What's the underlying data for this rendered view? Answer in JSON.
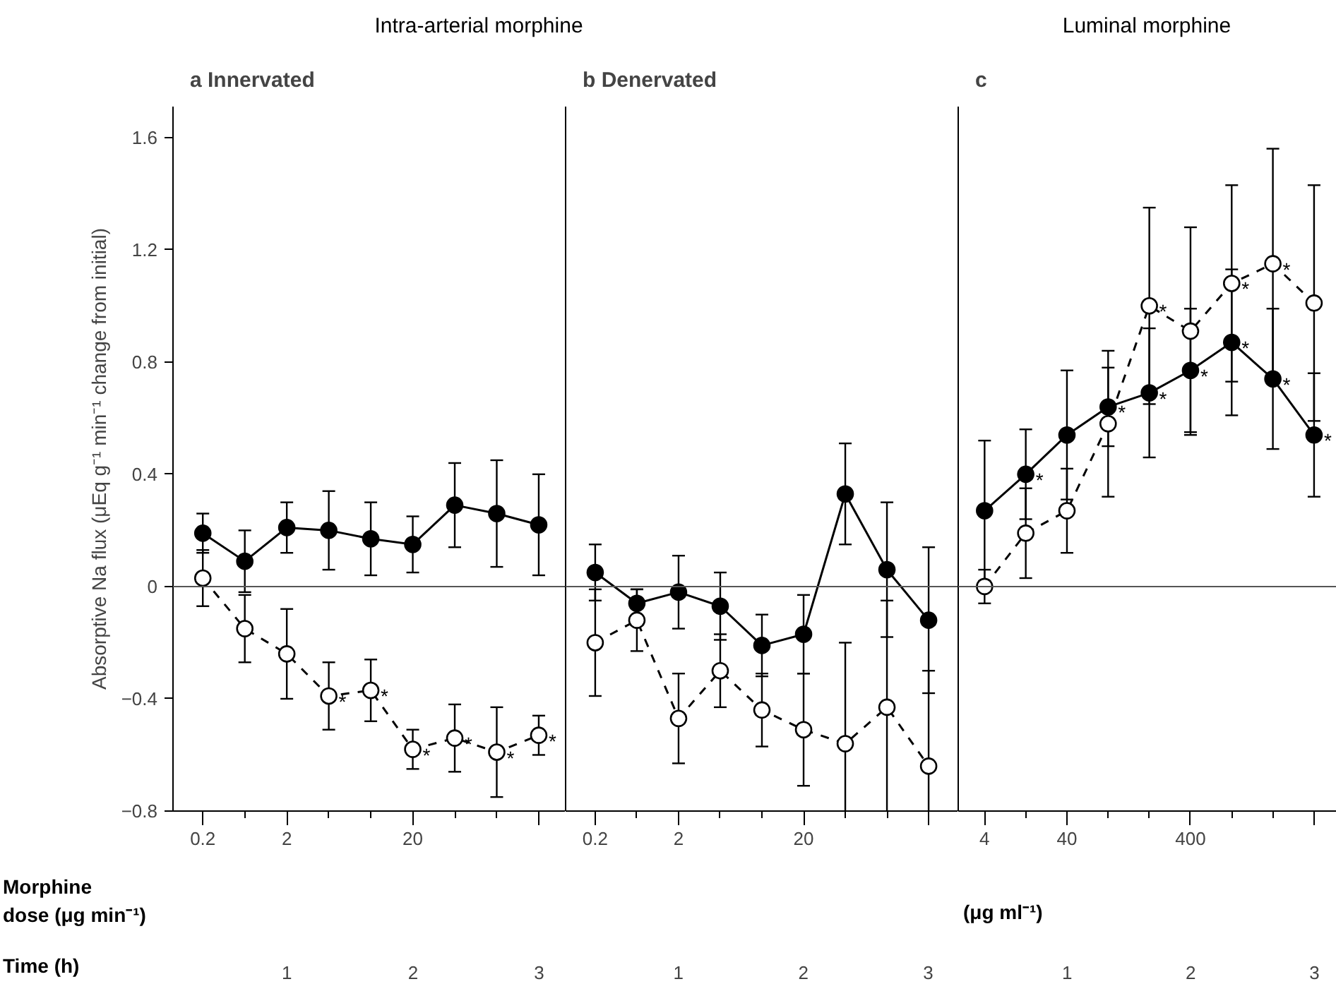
{
  "chart_data": [
    {
      "type": "line",
      "subtitle": "Intra-arterial morphine",
      "title": "a  Innervated",
      "ylabel": "Absorptive Na flux (μEq g⁻¹ min⁻¹ change from initial)",
      "xlabel": "Morphine\ndose (μg min⁻¹)",
      "x2label": "Time (h)",
      "marker": "circle",
      "categories": [
        "0.2",
        null,
        "2",
        null,
        null,
        "20",
        null,
        null,
        null
      ],
      "x2lim": [
        0.097,
        3.21
      ],
      "x2ticks": [
        1,
        2,
        3
      ],
      "ylim": [
        -0.8,
        1.71
      ],
      "yticks": [
        -0.8,
        -0.4,
        0,
        0.4,
        0.8,
        1.2,
        1.6
      ],
      "ref_lines": [
        {
          "axis": "y",
          "value": 0,
          "color": "#555555"
        }
      ],
      "series": [
        {
          "color": "#000000",
          "line_style": "solid",
          "values": [
            0.19,
            0.09,
            0.21,
            0.2,
            0.17,
            0.15,
            0.29,
            0.26,
            0.22
          ],
          "errors": [
            0.07,
            0.11,
            0.09,
            0.14,
            0.13,
            0.1,
            0.15,
            0.19,
            0.18
          ],
          "value_labels": [
            null,
            null,
            null,
            null,
            null,
            null,
            null,
            null,
            null
          ]
        },
        {
          "color": "#000000",
          "line_style": "dashed",
          "values": [
            0.03,
            -0.15,
            -0.24,
            -0.39,
            -0.37,
            -0.58,
            -0.54,
            -0.59,
            -0.53
          ],
          "errors": [
            0.1,
            0.12,
            0.16,
            0.12,
            0.11,
            0.07,
            0.12,
            0.16,
            0.07
          ],
          "value_labels": [
            null,
            null,
            null,
            "*",
            "*",
            "*",
            "*",
            "*",
            "*"
          ]
        }
      ]
    },
    {
      "type": "line",
      "title": "b  Denervated",
      "marker": "circle",
      "tick_labels": "x",
      "categories": [
        "0.2",
        null,
        "2",
        null,
        null,
        "20",
        null,
        null,
        null
      ],
      "x2lim": [
        0.097,
        3.24
      ],
      "x2ticks": [
        1,
        2,
        3
      ],
      "ylim": [
        -0.8,
        1.71
      ],
      "yticks": [
        -0.8,
        -0.4,
        0,
        0.4,
        0.8,
        1.2,
        1.6
      ],
      "ref_lines": [
        {
          "axis": "y",
          "value": 0,
          "color": "#555555"
        }
      ],
      "series": [
        {
          "color": "#000000",
          "line_style": "solid",
          "values": [
            0.05,
            -0.06,
            -0.02,
            -0.07,
            -0.21,
            -0.17,
            0.33,
            0.06,
            -0.12
          ],
          "errors": [
            0.1,
            0.05,
            0.13,
            0.12,
            0.11,
            0.14,
            0.18,
            0.24,
            0.26
          ]
        },
        {
          "color": "#000000",
          "line_style": "dashed",
          "values": [
            -0.2,
            -0.12,
            -0.47,
            -0.3,
            -0.44,
            -0.51,
            -0.56,
            -0.43,
            -0.64
          ],
          "errors": [
            0.19,
            0.11,
            0.16,
            0.13,
            0.13,
            0.2,
            0.36,
            0.38,
            0.34
          ]
        }
      ]
    },
    {
      "type": "line",
      "subtitle": "Luminal morphine",
      "title": "c",
      "xlabel": "(μg ml⁻¹)",
      "marker": "circle",
      "tick_labels": "x",
      "categories": [
        "4",
        null,
        "40",
        null,
        null,
        "400",
        null,
        null,
        null
      ],
      "x2lim": [
        0.12,
        3.18
      ],
      "x2ticks": [
        1,
        2,
        3
      ],
      "ylim": [
        -0.8,
        1.71
      ],
      "yticks": [
        -0.8,
        -0.4,
        0,
        0.4,
        0.8,
        1.2,
        1.6
      ],
      "ref_lines": [
        {
          "axis": "y",
          "value": 0,
          "color": "#555555"
        }
      ],
      "series": [
        {
          "color": "#000000",
          "line_style": "solid",
          "values": [
            0.27,
            0.4,
            0.54,
            0.64,
            0.69,
            0.77,
            0.87,
            0.74,
            0.54
          ],
          "errors": [
            0.25,
            0.16,
            0.23,
            0.14,
            0.23,
            0.22,
            0.26,
            0.25,
            0.22
          ],
          "value_labels": [
            null,
            "*",
            null,
            "*",
            "*",
            "*",
            "*",
            "*",
            "*"
          ]
        },
        {
          "color": "#000000",
          "line_style": "dashed",
          "values": [
            0.0,
            0.19,
            0.27,
            0.58,
            1.0,
            0.91,
            1.08,
            1.15,
            1.01
          ],
          "errors": [
            0.06,
            0.16,
            0.15,
            0.26,
            0.35,
            0.37,
            0.35,
            0.41,
            0.42
          ],
          "value_labels": [
            null,
            null,
            null,
            null,
            "*",
            null,
            "*",
            "*",
            null
          ]
        }
      ]
    }
  ]
}
